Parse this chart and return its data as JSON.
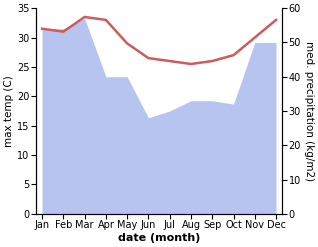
{
  "months": [
    "Jan",
    "Feb",
    "Mar",
    "Apr",
    "May",
    "Jun",
    "Jul",
    "Aug",
    "Sep",
    "Oct",
    "Nov",
    "Dec"
  ],
  "max_temp": [
    31.5,
    31.0,
    33.5,
    33.0,
    29.0,
    26.5,
    26.0,
    25.5,
    26.0,
    27.0,
    30.0,
    33.0
  ],
  "precipitation": [
    54,
    54,
    57,
    40,
    40,
    28,
    30,
    33,
    33,
    32,
    50,
    50
  ],
  "temp_color": "#cd5c5c",
  "precip_color": "#b8c4f0",
  "bg_color": "#ffffff",
  "temp_ylim": [
    0,
    35
  ],
  "precip_ylim": [
    0,
    60
  ],
  "temp_yticks": [
    0,
    5,
    10,
    15,
    20,
    25,
    30,
    35
  ],
  "precip_yticks": [
    0,
    10,
    20,
    30,
    40,
    50,
    60
  ],
  "xlabel": "date (month)",
  "ylabel_left": "max temp (C)",
  "ylabel_right": "med. precipitation (kg/m2)",
  "label_fontsize": 8,
  "tick_fontsize": 7
}
